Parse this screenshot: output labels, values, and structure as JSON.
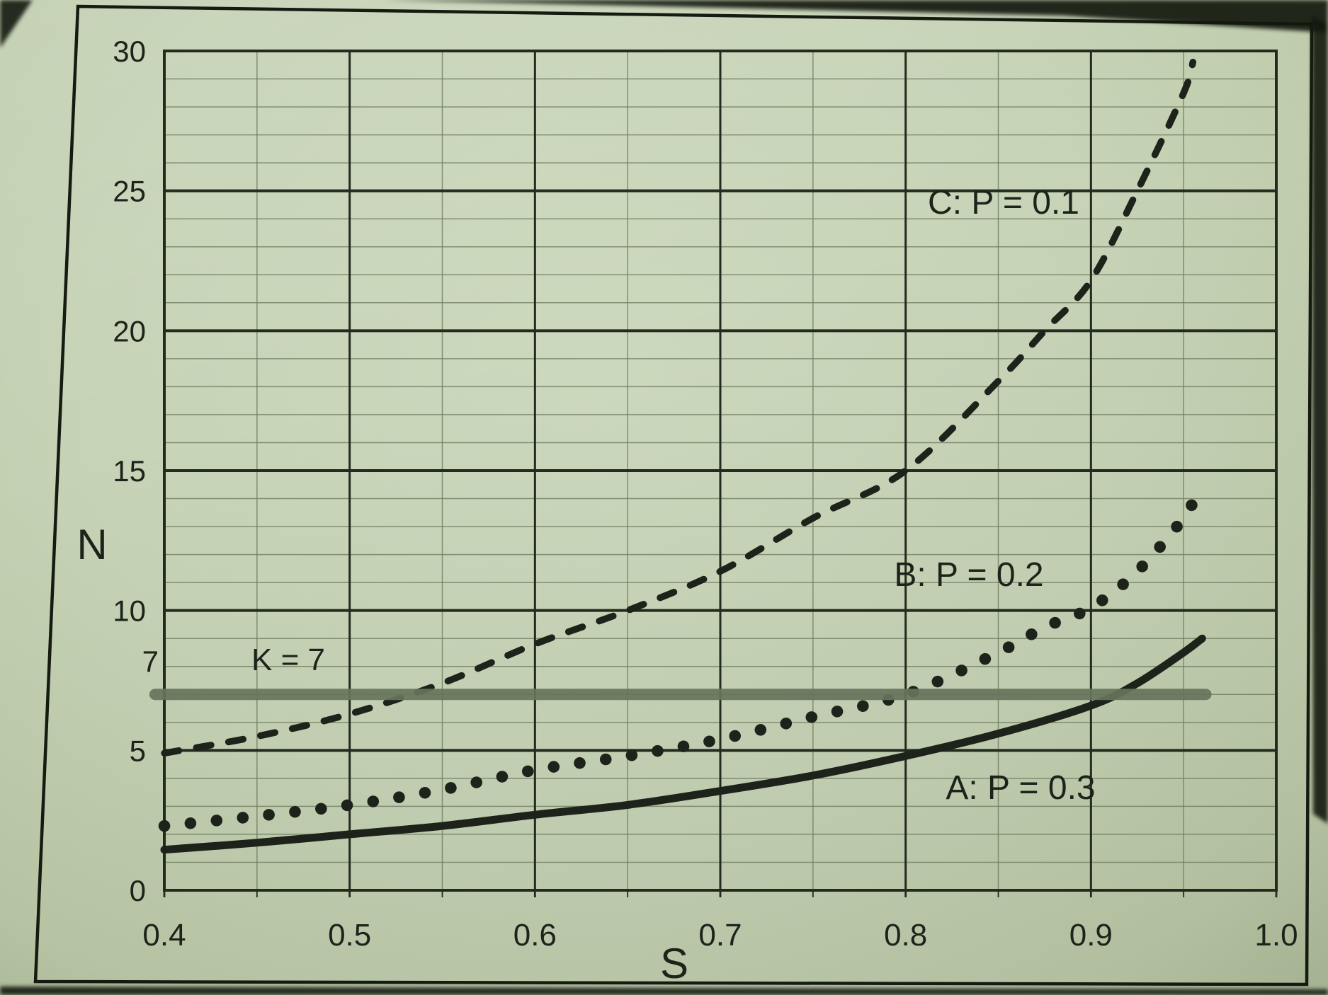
{
  "figure": {
    "y_axis_title": "N",
    "x_axis_title": "S",
    "annotations": {
      "curve_c": "C: P = 0.1",
      "curve_b": "B: P = 0.2",
      "curve_a": "A: P = 0.3",
      "k_line": "K = 7"
    }
  },
  "chart_data": {
    "type": "line",
    "title": "",
    "xlabel": "S",
    "ylabel": "N",
    "xlim": [
      0.4,
      1.0
    ],
    "ylim": [
      0,
      30
    ],
    "grid": true,
    "x_minor_step": 0.05,
    "y_minor_step": 1,
    "x_ticks": [
      0.4,
      0.5,
      0.6,
      0.7,
      0.8,
      0.9,
      1.0
    ],
    "x_tick_labels": [
      "0.4",
      "0.5",
      "0.6",
      "0.7",
      "0.8",
      "0.9",
      "1.0"
    ],
    "y_ticks": [
      0,
      5,
      10,
      15,
      20,
      25,
      30
    ],
    "y_tick_labels": [
      "0",
      "5",
      "10",
      "15",
      "20",
      "25",
      "30"
    ],
    "y_extra_tick": {
      "label": "7",
      "value": 7,
      "label_display_at": 8.2
    },
    "legend_position": "inline-annotations",
    "series": [
      {
        "id": "C",
        "name": "C: P = 0.1",
        "style": "dashed",
        "x": [
          0.4,
          0.45,
          0.5,
          0.55,
          0.6,
          0.65,
          0.7,
          0.75,
          0.8,
          0.85,
          0.875,
          0.9,
          0.925,
          0.95,
          0.955
        ],
        "y": [
          4.9,
          5.5,
          6.3,
          7.4,
          8.8,
          10.0,
          11.4,
          13.3,
          15.0,
          18.2,
          20.0,
          21.8,
          25.0,
          28.5,
          29.6
        ],
        "label_pos": {
          "x": 0.853,
          "y": 24.6
        }
      },
      {
        "id": "B",
        "name": "B: P = 0.2",
        "style": "dotted",
        "x": [
          0.4,
          0.45,
          0.5,
          0.55,
          0.6,
          0.65,
          0.7,
          0.75,
          0.8,
          0.85,
          0.875,
          0.9,
          0.925,
          0.95,
          0.955
        ],
        "y": [
          2.3,
          2.65,
          3.05,
          3.6,
          4.3,
          4.8,
          5.4,
          6.2,
          7.0,
          8.5,
          9.4,
          10.1,
          11.4,
          13.3,
          13.9
        ],
        "label_pos": {
          "x": 0.834,
          "y": 11.3
        }
      },
      {
        "id": "A",
        "name": "A: P = 0.3",
        "style": "solid",
        "x": [
          0.4,
          0.45,
          0.5,
          0.55,
          0.6,
          0.65,
          0.7,
          0.75,
          0.8,
          0.85,
          0.9,
          0.925,
          0.95,
          0.96
        ],
        "y": [
          1.45,
          1.7,
          2.0,
          2.3,
          2.7,
          3.05,
          3.55,
          4.1,
          4.8,
          5.6,
          6.6,
          7.4,
          8.5,
          9.0
        ],
        "label_pos": {
          "x": 0.862,
          "y": 3.7
        }
      },
      {
        "id": "K",
        "name": "K = 7",
        "style": "band",
        "x": [
          0.395,
          0.962
        ],
        "y": [
          7,
          7
        ],
        "label_pos": {
          "x": 0.467,
          "y": 8.3
        }
      }
    ]
  },
  "colors": {
    "paper": "#c6d3b6",
    "ink": "#1d231a",
    "grid_minor": "#6f7d5f",
    "grid_major": "#232a1e",
    "band": "#67755c",
    "photo_edge": "#14180e"
  }
}
